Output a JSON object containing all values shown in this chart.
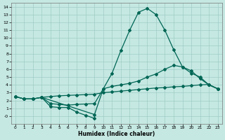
{
  "xlabel": "Humidex (Indice chaleur)",
  "bg_color": "#c5e8e2",
  "grid_color": "#a0ccc6",
  "line_color": "#006655",
  "xlim": [
    -0.5,
    23.5
  ],
  "ylim": [
    -1.0,
    14.5
  ],
  "xticks": [
    0,
    1,
    2,
    3,
    4,
    5,
    6,
    7,
    8,
    9,
    10,
    11,
    12,
    13,
    14,
    15,
    16,
    17,
    18,
    19,
    20,
    21,
    22,
    23
  ],
  "yticks": [
    0,
    1,
    2,
    3,
    4,
    5,
    6,
    7,
    8,
    9,
    10,
    11,
    12,
    13,
    14
  ],
  "ytick_labels": [
    "-0",
    "1",
    "2",
    "3",
    "4",
    "5",
    "6",
    "7",
    "8",
    "9",
    "10",
    "11",
    "12",
    "13",
    "14"
  ],
  "line1": {
    "x": [
      0,
      1,
      2,
      3,
      4,
      5,
      6,
      7,
      8,
      9,
      10,
      11,
      12,
      13,
      14,
      15,
      16,
      17,
      18,
      19,
      20,
      21,
      22,
      23
    ],
    "y": [
      2.5,
      2.2,
      2.2,
      2.4,
      2.5,
      2.6,
      2.65,
      2.7,
      2.75,
      2.8,
      3.0,
      3.1,
      3.2,
      3.3,
      3.4,
      3.5,
      3.6,
      3.65,
      3.75,
      3.8,
      3.9,
      4.0,
      4.05,
      3.5
    ]
  },
  "line2": {
    "x": [
      0,
      1,
      2,
      3,
      4,
      5,
      6,
      7,
      8,
      9,
      10,
      11,
      12,
      13,
      14,
      15,
      16,
      17,
      18,
      19,
      20,
      21,
      22,
      23
    ],
    "y": [
      2.5,
      2.2,
      2.2,
      2.4,
      1.6,
      1.5,
      1.4,
      1.5,
      1.55,
      1.6,
      3.5,
      3.8,
      4.0,
      4.2,
      4.5,
      5.0,
      5.4,
      6.0,
      6.5,
      6.3,
      5.8,
      4.8,
      4.0,
      3.5
    ]
  },
  "line3": {
    "x": [
      0,
      1,
      2,
      3,
      9,
      10,
      11,
      12,
      13,
      14,
      15,
      16,
      17,
      18,
      19,
      20,
      21,
      22,
      23
    ],
    "y": [
      2.5,
      2.2,
      2.2,
      2.4,
      0.2,
      3.5,
      5.5,
      8.4,
      11.0,
      13.3,
      13.8,
      13.0,
      11.0,
      8.5,
      6.3,
      5.5,
      5.0,
      4.0,
      3.5
    ]
  },
  "line4": {
    "x": [
      3,
      4,
      5,
      6,
      7,
      8,
      9
    ],
    "y": [
      2.4,
      1.2,
      1.1,
      1.1,
      0.5,
      0.1,
      -0.3
    ]
  }
}
